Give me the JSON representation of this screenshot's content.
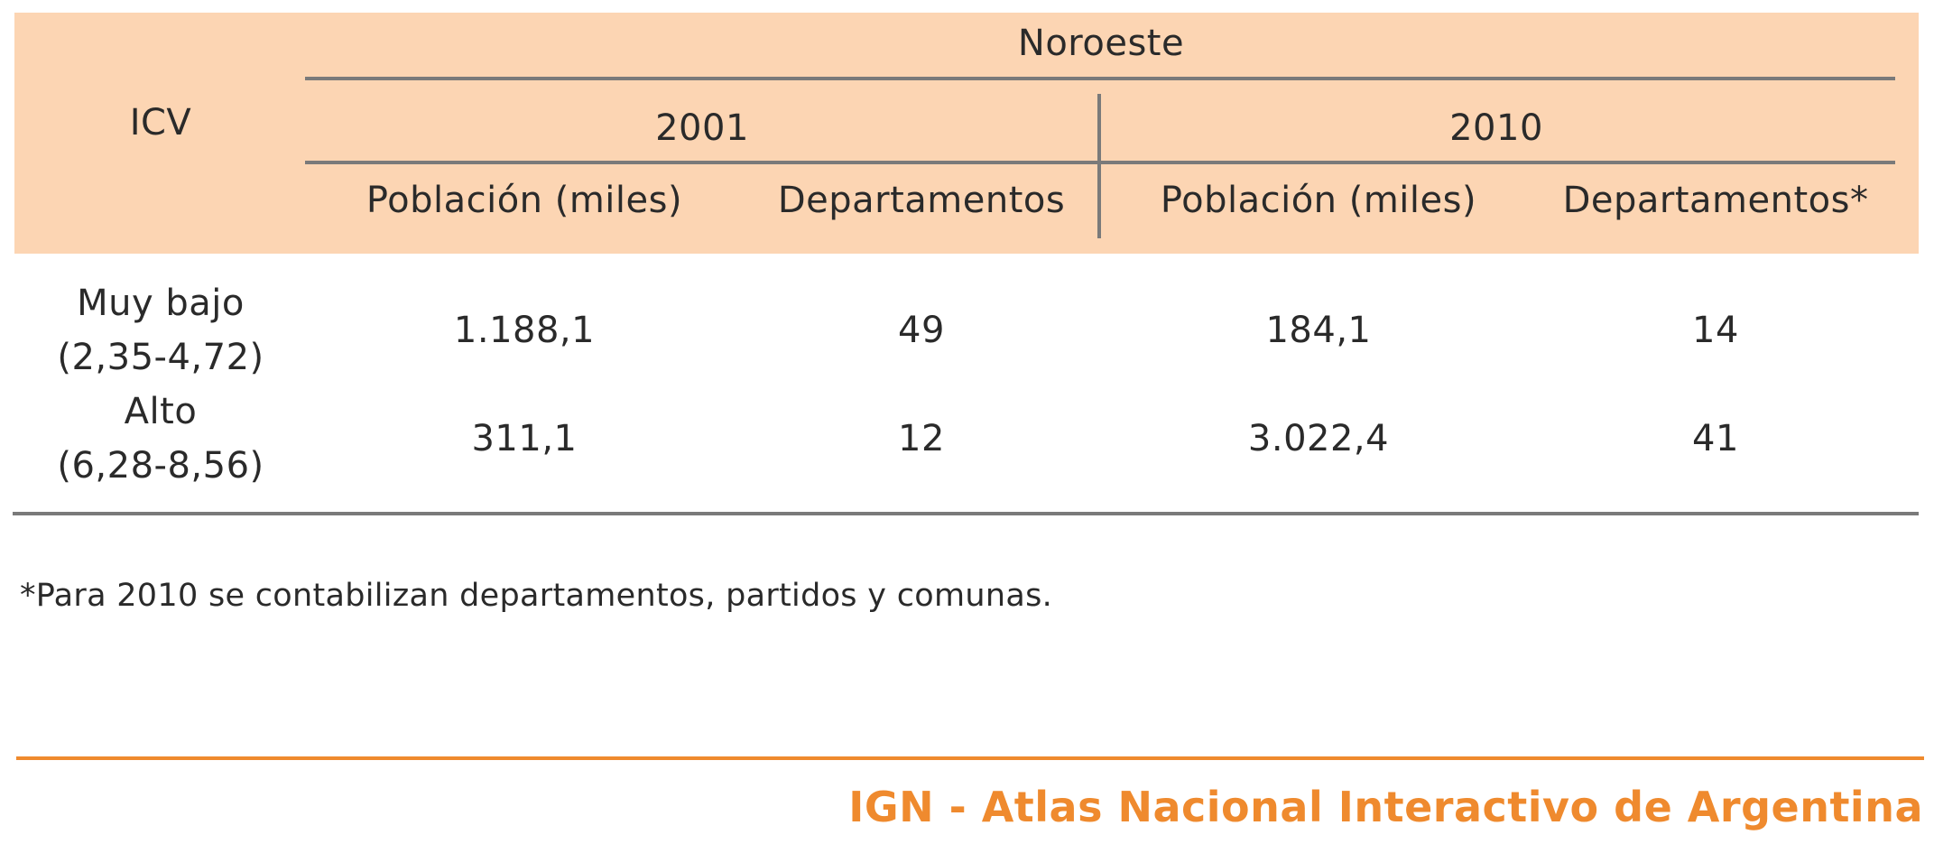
{
  "table": {
    "region_header": "Noroeste",
    "row_header": "ICV",
    "years": [
      "2001",
      "2010"
    ],
    "columns": [
      "Población (miles)",
      "Departamentos",
      "Población (miles)",
      "Departamentos*"
    ],
    "rows": [
      {
        "label_line1": "Muy bajo",
        "label_line2": "(2,35-4,72)",
        "values": [
          "1.188,1",
          "49",
          "184,1",
          "14"
        ]
      },
      {
        "label_line1": "Alto",
        "label_line2": "(6,28-8,56)",
        "values": [
          "311,1",
          "12",
          "3.022,4",
          "41"
        ]
      }
    ]
  },
  "footnote": "*Para 2010 se contabilizan departamentos, partidos y comunas.",
  "footer": {
    "brand": "IGN - Atlas Nacional Interactivo de Argentina"
  },
  "colors": {
    "header_background": "#fcd5b3",
    "accent": "#ef8a2e",
    "rule": "#7a7a7a"
  }
}
